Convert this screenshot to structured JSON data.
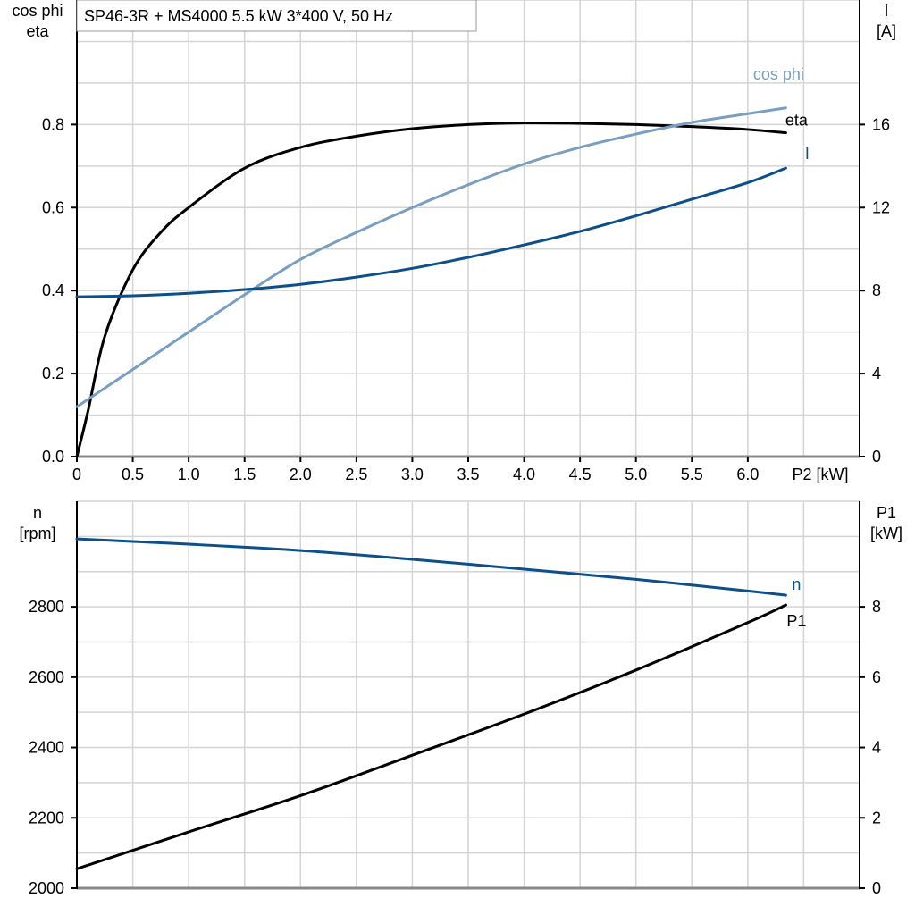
{
  "chart_data": [
    {
      "type": "line",
      "title": "SP46-3R + MS4000   5.5 kW   3*400 V, 50 Hz",
      "xlabel": "P2 [kW]",
      "ylabel_left": [
        "cos phi",
        "eta"
      ],
      "ylabel_right": [
        "I",
        "[A]"
      ],
      "xlim": [
        0,
        7
      ],
      "ylim_left": [
        0,
        1.1
      ],
      "ylim_right": [
        0,
        22
      ],
      "x_ticks": [
        "0",
        "0.5",
        "1.0",
        "1.5",
        "2.0",
        "2.5",
        "3.0",
        "3.5",
        "4.0",
        "4.5",
        "5.0",
        "5.5",
        "6.0"
      ],
      "y_ticks_left": [
        "0.0",
        "0.2",
        "0.4",
        "0.6",
        "0.8"
      ],
      "y_ticks_right": [
        "0",
        "4",
        "8",
        "12",
        "16"
      ],
      "grid": true,
      "series": [
        {
          "name": "eta",
          "axis": "left",
          "color": "#000000",
          "x": [
            0,
            0.1,
            0.25,
            0.5,
            0.75,
            1,
            1.5,
            2,
            2.5,
            3,
            3.5,
            4,
            4.5,
            5,
            5.5,
            6,
            6.34
          ],
          "y": [
            0,
            0.11,
            0.29,
            0.45,
            0.54,
            0.6,
            0.695,
            0.745,
            0.772,
            0.79,
            0.8,
            0.804,
            0.803,
            0.8,
            0.795,
            0.788,
            0.78
          ]
        },
        {
          "name": "cos phi",
          "axis": "left",
          "color": "#7a9ec0",
          "x": [
            0,
            0.5,
            1,
            1.5,
            2,
            2.5,
            3,
            3.5,
            4,
            4.5,
            5,
            5.5,
            6,
            6.34
          ],
          "y": [
            0.12,
            0.21,
            0.3,
            0.39,
            0.475,
            0.54,
            0.6,
            0.655,
            0.705,
            0.745,
            0.777,
            0.805,
            0.826,
            0.84
          ]
        },
        {
          "name": "I",
          "axis": "right",
          "color": "#0d4f8b",
          "x": [
            0,
            0.5,
            1,
            1.5,
            2,
            2.5,
            3,
            3.5,
            4,
            4.5,
            5,
            5.5,
            6,
            6.34
          ],
          "y": [
            7.7,
            7.75,
            7.87,
            8.05,
            8.3,
            8.65,
            9.07,
            9.6,
            10.2,
            10.85,
            11.6,
            12.4,
            13.2,
            13.9
          ]
        }
      ]
    },
    {
      "type": "line",
      "ylabel_left": [
        "n",
        "[rpm]"
      ],
      "ylabel_right": [
        "P1",
        "[kW]"
      ],
      "xlim": [
        0,
        7
      ],
      "ylim_left": [
        2000,
        3100
      ],
      "ylim_right": [
        0,
        11
      ],
      "y_ticks_left": [
        "2000",
        "2200",
        "2400",
        "2600",
        "2800"
      ],
      "y_ticks_right": [
        "0",
        "2",
        "4",
        "6",
        "8"
      ],
      "grid": true,
      "series": [
        {
          "name": "n",
          "axis": "left",
          "color": "#0d4f8b",
          "x": [
            0,
            1,
            2,
            3,
            4,
            5,
            6,
            6.34
          ],
          "y": [
            2993,
            2978,
            2960,
            2935,
            2907,
            2878,
            2845,
            2833
          ]
        },
        {
          "name": "P1",
          "axis": "right",
          "color": "#000000",
          "x": [
            0,
            1,
            2,
            3,
            4,
            5,
            6,
            6.34
          ],
          "y": [
            0.55,
            1.6,
            2.63,
            3.78,
            4.95,
            6.2,
            7.55,
            8.05
          ]
        }
      ]
    }
  ]
}
